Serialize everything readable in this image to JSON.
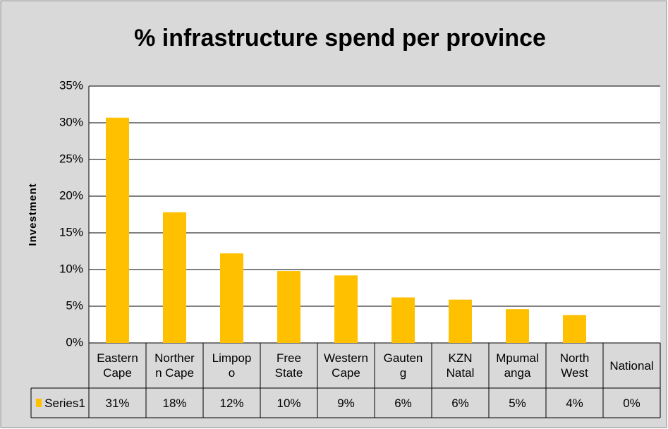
{
  "chart_data": {
    "type": "bar",
    "title": "% infrastructure spend per province",
    "y_label": "Investment",
    "categories": [
      "Eastern Cape",
      "Northern Cape",
      "Limpopo",
      "Free State",
      "Western Cape",
      "Gauteng",
      "KZN Natal",
      "Mpumalanga",
      "North West",
      "National"
    ],
    "series": [
      {
        "name": "Series1",
        "color": "#ffc000",
        "values": [
          30.7,
          17.8,
          12.2,
          9.8,
          9.2,
          6.2,
          5.9,
          4.6,
          3.8,
          0
        ],
        "value_labels": [
          "31%",
          "18%",
          "12%",
          "10%",
          "9%",
          "6%",
          "6%",
          "5%",
          "4%",
          "0%"
        ]
      }
    ],
    "ylim": [
      0,
      35
    ],
    "yticks": [
      {
        "value": 0,
        "label": "0%"
      },
      {
        "value": 5,
        "label": "5%"
      },
      {
        "value": 10,
        "label": "10%"
      },
      {
        "value": 15,
        "label": "15%"
      },
      {
        "value": 20,
        "label": "20%"
      },
      {
        "value": 25,
        "label": "25%"
      },
      {
        "value": 30,
        "label": "30%"
      },
      {
        "value": 35,
        "label": "35%"
      }
    ],
    "grid": true,
    "data_table": true
  }
}
